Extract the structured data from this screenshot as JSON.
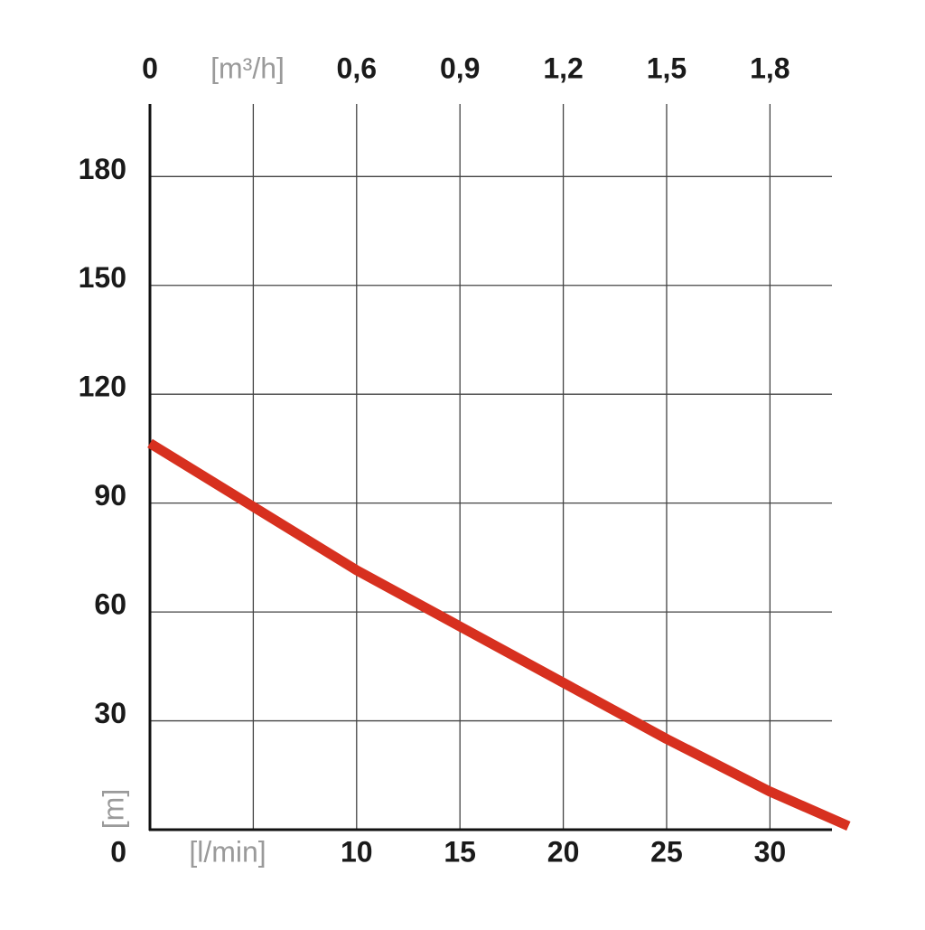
{
  "chart_data": {
    "type": "line",
    "x_label": "[l/min]",
    "y_label": "[m]",
    "x2_label": "[m³/h]",
    "xlim": [
      0,
      33
    ],
    "ylim": [
      0,
      200
    ],
    "x2lim": [
      0,
      1.98
    ],
    "xticks": [
      {
        "value": 5,
        "label": null
      },
      10,
      15,
      20,
      25,
      30
    ],
    "yticks": [
      0,
      30,
      60,
      90,
      120,
      150,
      180
    ],
    "x2ticks": [
      0,
      {
        "value": 0.6,
        "label": "0,6"
      },
      {
        "value": 0.9,
        "label": "0,9"
      },
      {
        "value": 1.2,
        "label": "1,2"
      },
      {
        "value": 1.5,
        "label": "1,5"
      },
      {
        "value": 1.8,
        "label": "1,8"
      }
    ],
    "grid": true,
    "x": [
      0,
      5,
      10,
      15,
      20,
      25,
      30,
      33.8
    ],
    "series": [
      {
        "color": "#d7301f",
        "values": [
          106.5,
          89,
          71.5,
          56,
          40.5,
          25,
          10.5,
          1
        ]
      }
    ]
  }
}
